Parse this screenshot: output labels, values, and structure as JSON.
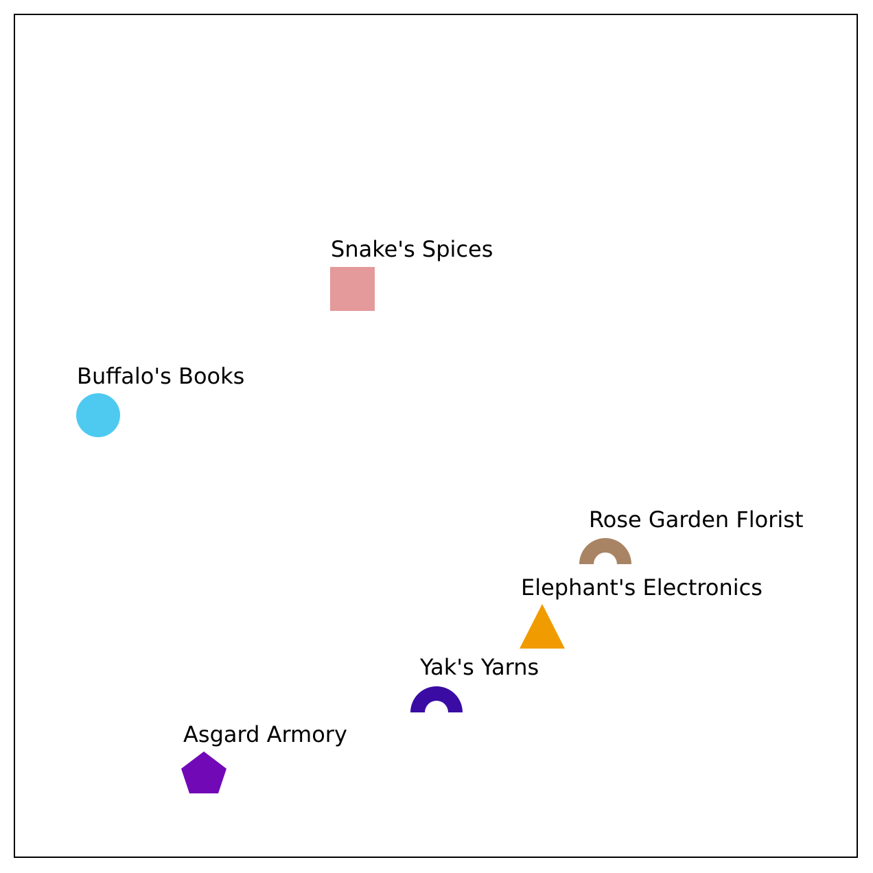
{
  "places": [
    {
      "id": "snakes-spices",
      "label": "Snake's Spices",
      "shape": "square",
      "color": "#e4999b"
    },
    {
      "id": "buffalos-books",
      "label": "Buffalo's Books",
      "shape": "circle",
      "color": "#4ecaf1"
    },
    {
      "id": "rose-garden-florist",
      "label": "Rose Garden Florist",
      "shape": "arch",
      "color": "#a88465"
    },
    {
      "id": "elephants-electronics",
      "label": "Elephant's Electronics",
      "shape": "triangle",
      "color": "#f09c00"
    },
    {
      "id": "yaks-yarns",
      "label": "Yak's Yarns",
      "shape": "arch",
      "color": "#3a0ca3"
    },
    {
      "id": "asgard-armory",
      "label": "Asgard Armory",
      "shape": "pentagon",
      "color": "#7209b7"
    }
  ]
}
